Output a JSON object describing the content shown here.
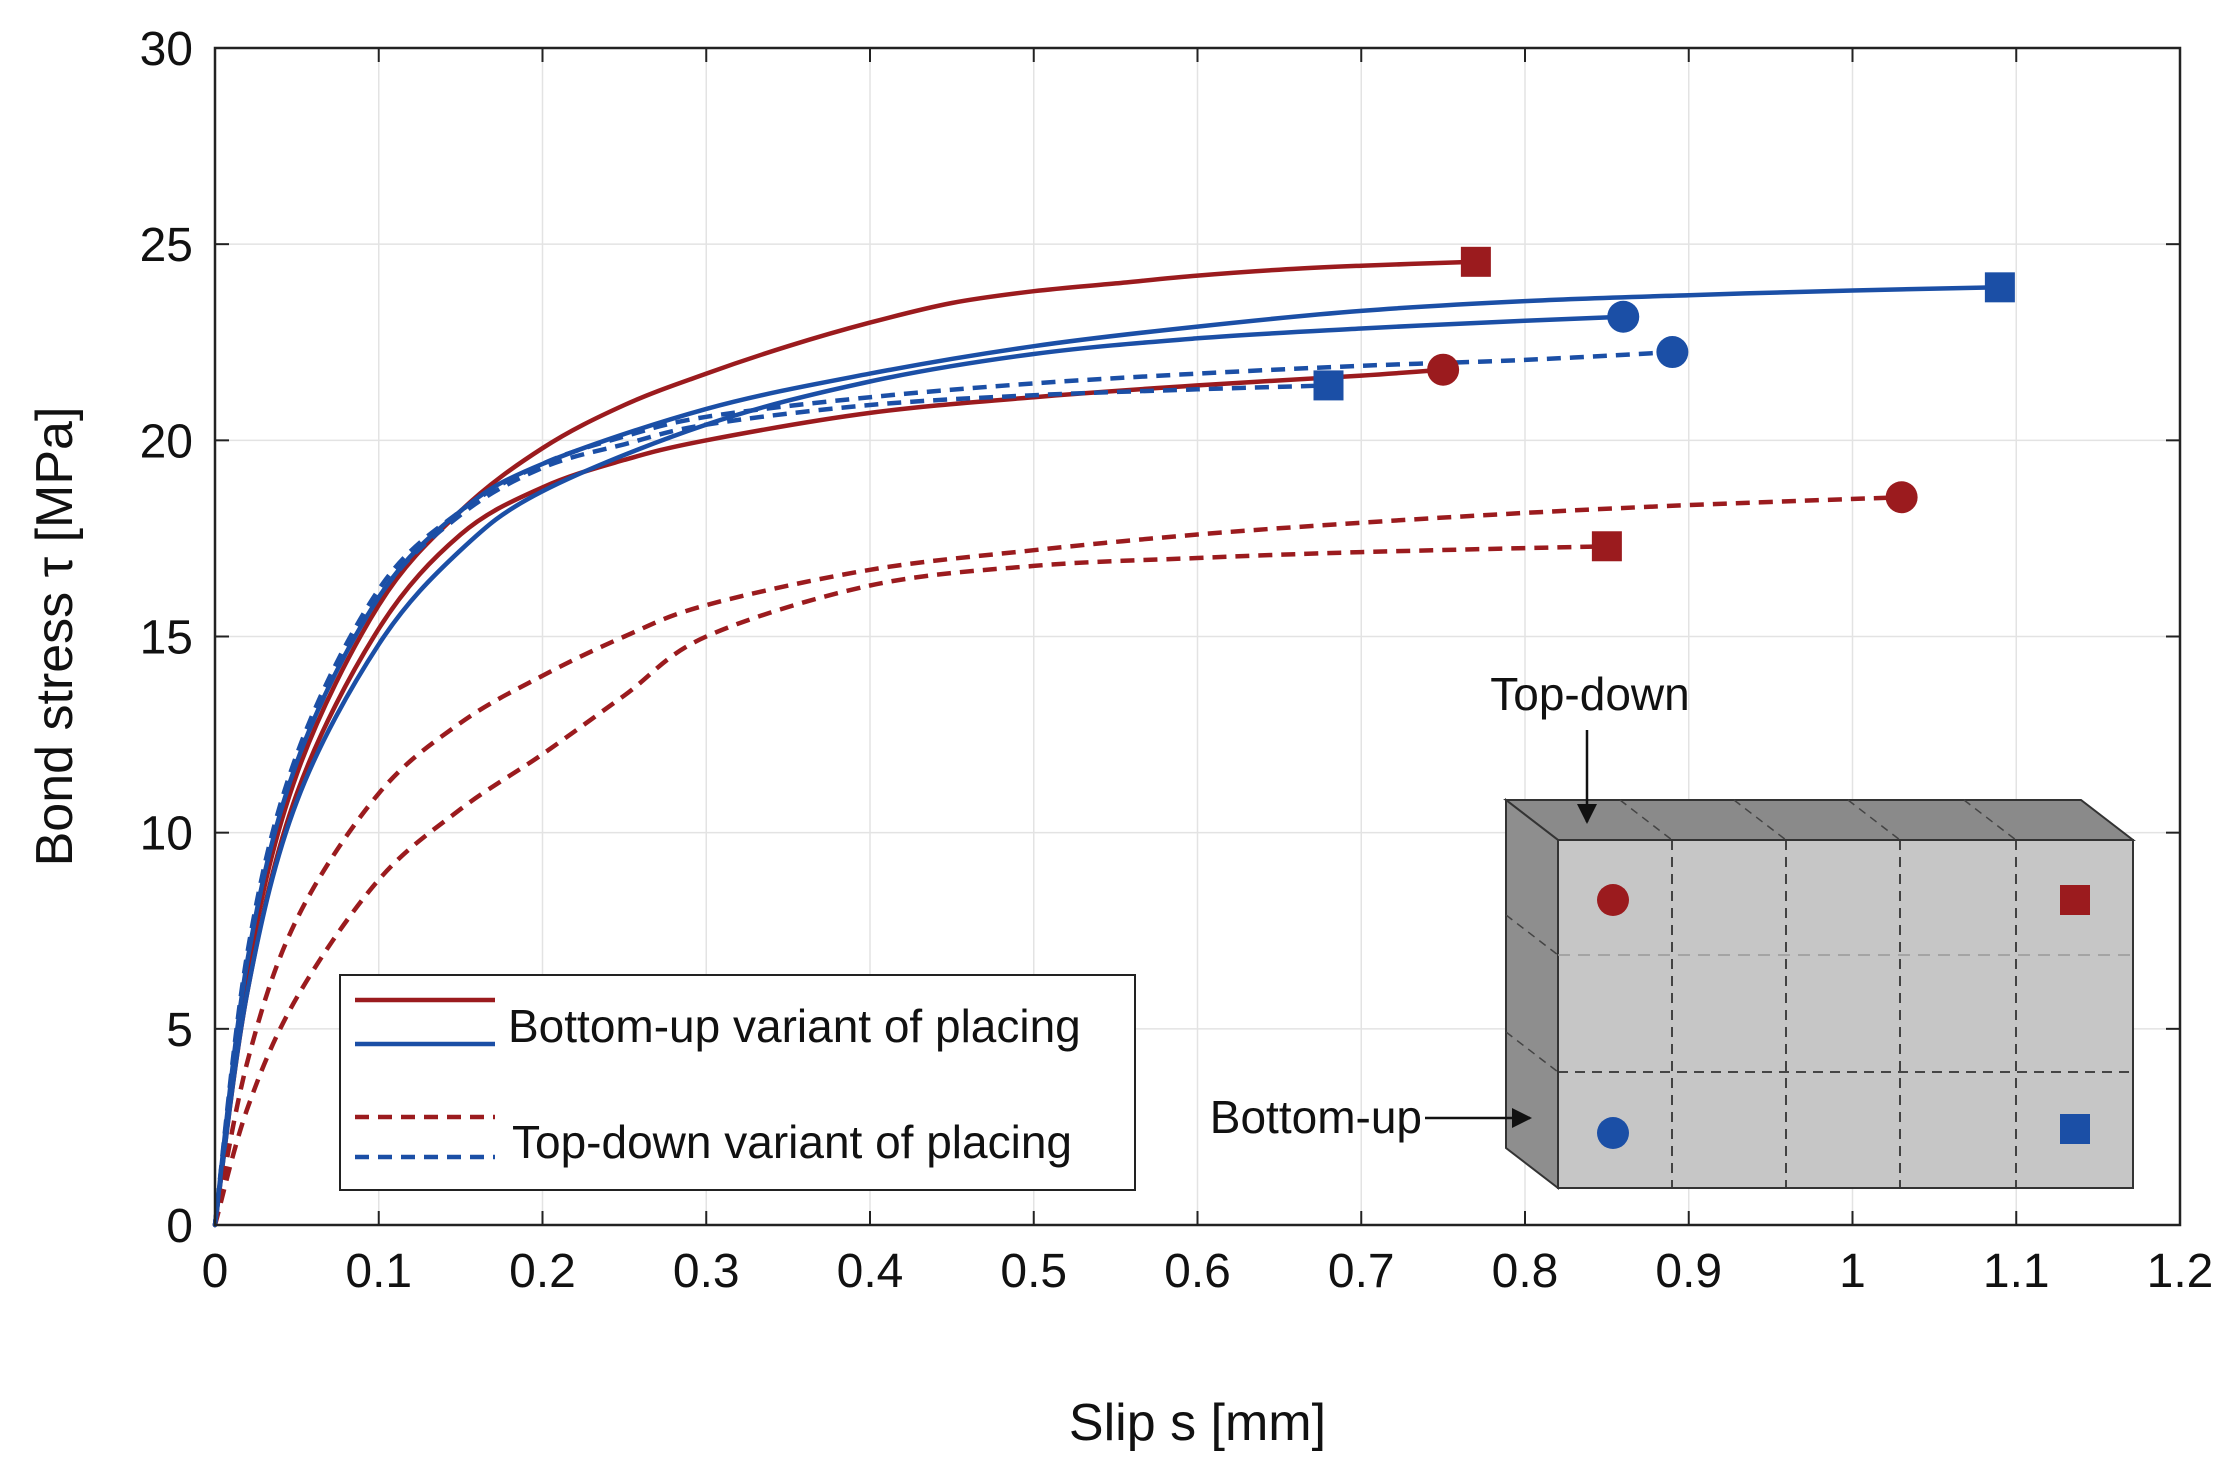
{
  "chart_data": {
    "type": "line",
    "title": "",
    "xlabel": "Slip s [mm]",
    "ylabel": "Bond stress  τ  [MPa]",
    "xlim": [
      0,
      1.2
    ],
    "ylim": [
      0,
      30
    ],
    "xticks": [
      0,
      0.1,
      0.2,
      0.3,
      0.4,
      0.5,
      0.6,
      0.7,
      0.8,
      0.9,
      1,
      1.1,
      1.2
    ],
    "xtick_labels": [
      "0",
      "0.1",
      "0.2",
      "0.3",
      "0.4",
      "0.5",
      "0.6",
      "0.7",
      "0.8",
      "0.9",
      "1",
      "1.1",
      "1.2"
    ],
    "yticks": [
      0,
      5,
      10,
      15,
      20,
      25,
      30
    ],
    "ytick_labels": [
      "0",
      "5",
      "10",
      "15",
      "20",
      "25",
      "30"
    ],
    "grid": true,
    "colors": {
      "red": "#9b1b1e",
      "blue": "#1b4fa6"
    },
    "legend": {
      "placement": "lower-left",
      "entries": [
        {
          "label": "Bottom-up variant of placing",
          "style": "solid",
          "colors": [
            "red",
            "blue"
          ]
        },
        {
          "label": "Top-down variant of placing",
          "style": "dashed",
          "colors": [
            "red",
            "blue"
          ]
        }
      ]
    },
    "series": [
      {
        "color": "red",
        "style": "solid",
        "marker": "square",
        "x": [
          0,
          0.02,
          0.05,
          0.1,
          0.15,
          0.2,
          0.25,
          0.3,
          0.35,
          0.4,
          0.45,
          0.5,
          0.55,
          0.6,
          0.65,
          0.7,
          0.77
        ],
        "y": [
          0,
          6.5,
          11.5,
          15.8,
          18.2,
          19.8,
          20.9,
          21.7,
          22.4,
          23.0,
          23.5,
          23.8,
          24.0,
          24.2,
          24.35,
          24.45,
          24.55
        ]
      },
      {
        "color": "red",
        "style": "solid",
        "marker": "circle",
        "x": [
          0,
          0.02,
          0.05,
          0.1,
          0.15,
          0.2,
          0.25,
          0.3,
          0.4,
          0.5,
          0.6,
          0.7,
          0.75
        ],
        "y": [
          0,
          6.0,
          11.0,
          15.2,
          17.6,
          18.8,
          19.5,
          20.0,
          20.7,
          21.1,
          21.4,
          21.65,
          21.8
        ]
      },
      {
        "color": "blue",
        "style": "solid",
        "marker": "square",
        "x": [
          0,
          0.02,
          0.05,
          0.1,
          0.15,
          0.2,
          0.3,
          0.4,
          0.5,
          0.6,
          0.7,
          0.8,
          0.9,
          1.0,
          1.09
        ],
        "y": [
          0,
          6.8,
          11.8,
          16.0,
          18.2,
          19.4,
          20.8,
          21.7,
          22.4,
          22.9,
          23.3,
          23.55,
          23.7,
          23.82,
          23.9
        ]
      },
      {
        "color": "blue",
        "style": "solid",
        "marker": "circle",
        "x": [
          0,
          0.02,
          0.05,
          0.1,
          0.15,
          0.2,
          0.3,
          0.4,
          0.5,
          0.6,
          0.7,
          0.8,
          0.86
        ],
        "y": [
          0,
          6.0,
          10.8,
          14.8,
          17.2,
          18.7,
          20.4,
          21.5,
          22.2,
          22.6,
          22.85,
          23.05,
          23.15
        ]
      },
      {
        "color": "red",
        "style": "dashed",
        "marker": "circle",
        "x": [
          0,
          0.02,
          0.05,
          0.1,
          0.15,
          0.2,
          0.25,
          0.3,
          0.4,
          0.5,
          0.6,
          0.7,
          0.8,
          0.9,
          1.03
        ],
        "y": [
          0,
          4.2,
          7.8,
          11.0,
          12.8,
          14.0,
          15.0,
          15.8,
          16.7,
          17.2,
          17.6,
          17.9,
          18.15,
          18.35,
          18.55
        ]
      },
      {
        "color": "red",
        "style": "dashed",
        "marker": "square",
        "x": [
          0,
          0.02,
          0.05,
          0.1,
          0.15,
          0.2,
          0.25,
          0.3,
          0.4,
          0.5,
          0.6,
          0.7,
          0.85
        ],
        "y": [
          0,
          3.0,
          5.8,
          8.8,
          10.6,
          12.0,
          13.5,
          15.0,
          16.3,
          16.8,
          17.0,
          17.15,
          17.3
        ]
      },
      {
        "color": "blue",
        "style": "dashed",
        "marker": "circle",
        "x": [
          0,
          0.02,
          0.05,
          0.1,
          0.15,
          0.2,
          0.25,
          0.3,
          0.4,
          0.5,
          0.6,
          0.7,
          0.8,
          0.89
        ],
        "y": [
          0,
          7.0,
          12.0,
          16.2,
          18.2,
          19.4,
          20.1,
          20.6,
          21.1,
          21.45,
          21.7,
          21.9,
          22.05,
          22.25
        ]
      },
      {
        "color": "blue",
        "style": "dashed",
        "marker": "square",
        "x": [
          0,
          0.02,
          0.05,
          0.1,
          0.15,
          0.2,
          0.25,
          0.3,
          0.4,
          0.5,
          0.6,
          0.68
        ],
        "y": [
          0,
          6.8,
          11.8,
          16.0,
          18.1,
          19.3,
          19.9,
          20.4,
          20.9,
          21.15,
          21.3,
          21.4
        ]
      }
    ],
    "inset": {
      "top_label": "Top-down",
      "side_label": "Bottom-up",
      "markers": [
        {
          "marker": "circle",
          "color": "red"
        },
        {
          "marker": "square",
          "color": "red"
        },
        {
          "marker": "circle",
          "color": "blue"
        },
        {
          "marker": "square",
          "color": "blue"
        }
      ]
    }
  }
}
